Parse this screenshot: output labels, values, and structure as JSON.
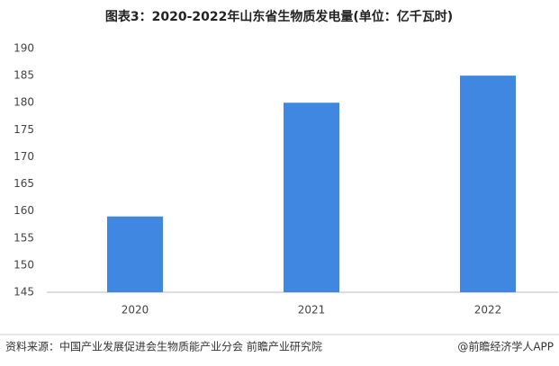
{
  "chart_data": {
    "type": "bar",
    "title": "图表3：2020-2022年山东省生物质发电量(单位：亿千瓦时)",
    "categories": [
      "2020",
      "2021",
      "2022"
    ],
    "values": [
      159,
      180,
      185
    ],
    "color": "#3f87e0",
    "ylim": [
      145,
      190
    ],
    "yticks": [
      145,
      150,
      155,
      160,
      165,
      170,
      175,
      180,
      185,
      190
    ],
    "grid": false,
    "source": "资料来源：中国产业发展促进会生物质能产业分会 前瞻产业研究院",
    "credit": "@前瞻经济学人APP"
  }
}
